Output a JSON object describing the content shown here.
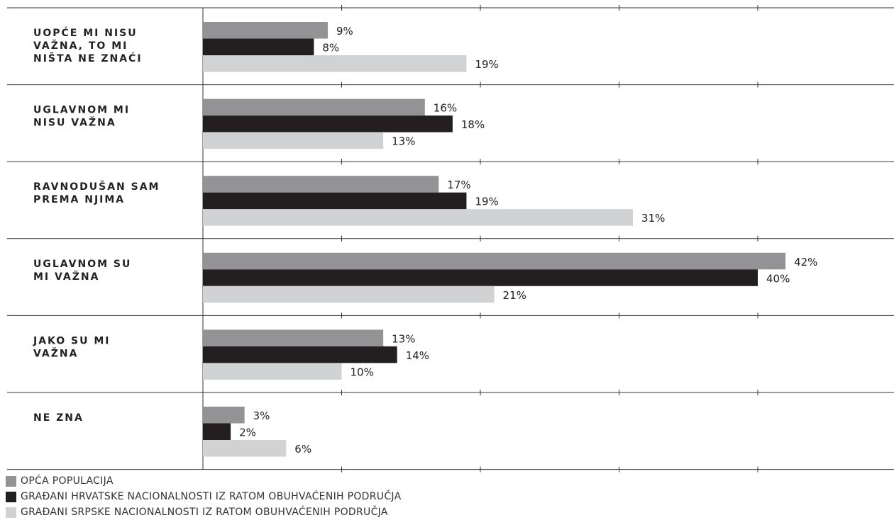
{
  "chart_data": {
    "type": "bar",
    "orientation": "horizontal",
    "categories": [
      [
        "UOPĆE MI NISU",
        "VAŽNA, TO MI",
        "NIŠTA NE ZNAĆI"
      ],
      [
        "UGLAVNOM MI",
        "NISU VAŽNA"
      ],
      [
        "RAVNODUŠAN SAM",
        "PREMA NJIMA"
      ],
      [
        "UGLAVNOM SU",
        "MI VAŽNA"
      ],
      [
        "JAKO SU MI",
        "VAŽNA"
      ],
      [
        "NE ZNA"
      ]
    ],
    "series": [
      {
        "name": "OPĆA POPULACIJA",
        "color": "#939396",
        "values": [
          9,
          16,
          17,
          42,
          13,
          3
        ]
      },
      {
        "name": "GRAĐANI HRVATSKE NACIONALNOSTI IZ RATOM OBUHVAĆENIH PODRUČJA",
        "color": "#231f20",
        "values": [
          8,
          18,
          19,
          40,
          14,
          2
        ]
      },
      {
        "name": "GRAĐANI SRPSKE NACIONALNOSTI IZ RATOM OBUHVAĆENIH PODRUČJA",
        "color": "#d1d2d4",
        "values": [
          19,
          13,
          31,
          21,
          10,
          6
        ]
      }
    ],
    "value_suffix": "%",
    "xlim": [
      0,
      50
    ],
    "grid": true,
    "legend_position": "bottom-left"
  }
}
